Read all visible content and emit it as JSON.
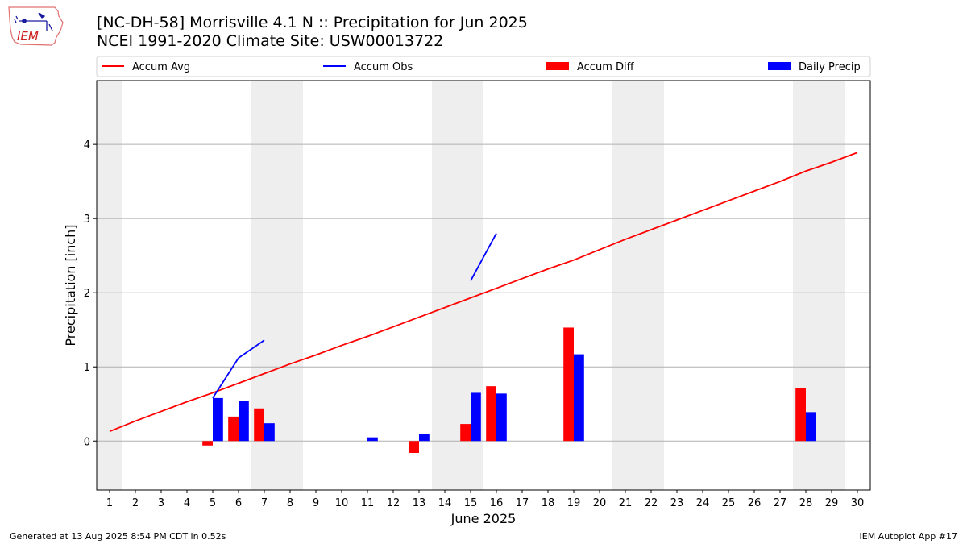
{
  "header": {
    "title_line1": "[NC-DH-58] Morrisville 4.1 N :: Precipitation for Jun 2025",
    "title_line2": "NCEI 1991-2020 Climate Site: USW00013722",
    "logo_text": "IEM"
  },
  "footer": {
    "generated": "Generated at 13 Aug 2025 8:54 PM CDT in 0.52s",
    "app": "IEM Autoplot App #17"
  },
  "chart_data": {
    "type": "bar",
    "xlabel": "June 2025",
    "ylabel": "Precipitation [inch]",
    "xlim": [
      0.5,
      30.5
    ],
    "ylim": [
      -0.66,
      4.86
    ],
    "yticks": [
      0,
      1,
      2,
      3,
      4
    ],
    "xticks": [
      1,
      2,
      3,
      4,
      5,
      6,
      7,
      8,
      9,
      10,
      11,
      12,
      13,
      14,
      15,
      16,
      17,
      18,
      19,
      20,
      21,
      22,
      23,
      24,
      25,
      26,
      27,
      28,
      29,
      30
    ],
    "grid": "horizontal",
    "legend_position": "top",
    "weekend_shading": [
      [
        0.5,
        1.5
      ],
      [
        6.5,
        8.5
      ],
      [
        13.5,
        15.5
      ],
      [
        20.5,
        22.5
      ],
      [
        27.5,
        29.5
      ]
    ],
    "series": [
      {
        "name": "Accum Avg",
        "kind": "line",
        "color": "#ff0000",
        "x": [
          1,
          2,
          3,
          4,
          5,
          6,
          7,
          8,
          9,
          10,
          11,
          12,
          13,
          14,
          15,
          16,
          17,
          18,
          19,
          20,
          21,
          22,
          23,
          24,
          25,
          26,
          27,
          28,
          29,
          30
        ],
        "values": [
          0.13,
          0.27,
          0.4,
          0.53,
          0.65,
          0.78,
          0.91,
          1.04,
          1.16,
          1.29,
          1.41,
          1.54,
          1.67,
          1.8,
          1.93,
          2.06,
          2.19,
          2.32,
          2.44,
          2.58,
          2.72,
          2.85,
          2.98,
          3.11,
          3.24,
          3.37,
          3.5,
          3.64,
          3.76,
          3.89
        ]
      },
      {
        "name": "Accum Obs",
        "kind": "line",
        "color": "#0000ff",
        "segments": [
          {
            "x": [
              5,
              6,
              7
            ],
            "values": [
              0.58,
              1.12,
              1.36
            ]
          },
          {
            "x": [
              15,
              16
            ],
            "values": [
              2.16,
              2.8
            ]
          }
        ]
      },
      {
        "name": "Accum Diff",
        "kind": "bar",
        "color": "#ff0000",
        "x": [
          5,
          6,
          7,
          13,
          15,
          16,
          19,
          28
        ],
        "values": [
          -0.06,
          0.33,
          0.44,
          -0.16,
          0.23,
          0.74,
          1.53,
          0.72
        ]
      },
      {
        "name": "Daily Precip",
        "kind": "bar",
        "color": "#0000ff",
        "x": [
          5,
          6,
          7,
          11,
          13,
          15,
          16,
          19,
          28
        ],
        "values": [
          0.58,
          0.54,
          0.24,
          0.05,
          0.1,
          0.65,
          0.64,
          1.17,
          0.39
        ]
      }
    ]
  }
}
